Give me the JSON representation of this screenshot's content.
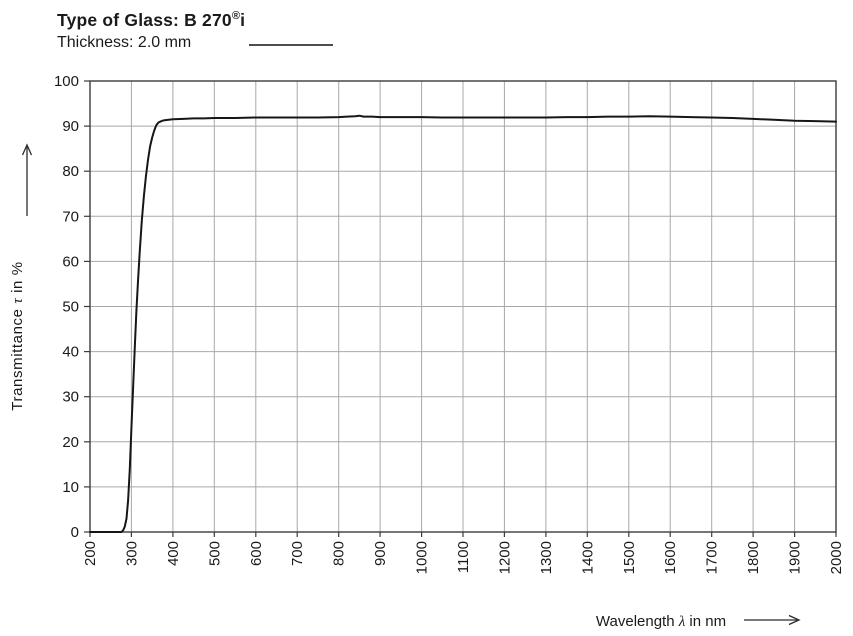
{
  "header": {
    "title": "Type of Glass: B 270®i",
    "title_prefix": "Type of Glass: B 270",
    "title_reg": "®",
    "title_suffix": "i",
    "subtitle": "Thickness: 2.0 mm"
  },
  "chart_data": {
    "type": "line",
    "title": "Type of Glass: B 270®i",
    "subtitle": "Thickness: 2.0 mm",
    "xlabel": "Wavelength λ in nm",
    "ylabel": "Transmittance τ in %",
    "xlabel_parts": {
      "pre": "Wavelength ",
      "sym": "λ",
      "post": " in nm"
    },
    "ylabel_parts": {
      "pre": "Transmittance ",
      "sym": "τ",
      "post": " in %"
    },
    "xlim": [
      200,
      2000
    ],
    "ylim": [
      0,
      100
    ],
    "xticks": [
      200,
      300,
      400,
      500,
      600,
      700,
      800,
      900,
      1000,
      1100,
      1200,
      1300,
      1400,
      1500,
      1600,
      1700,
      1800,
      1900,
      2000
    ],
    "yticks": [
      0,
      10,
      20,
      30,
      40,
      50,
      60,
      70,
      80,
      90,
      100
    ],
    "grid": true,
    "legend": {
      "position": "top-left",
      "entries": [
        {
          "label": "Thickness: 2.0 mm",
          "style": "solid-line"
        }
      ]
    },
    "series": [
      {
        "name": "2.0 mm",
        "points": [
          [
            200,
            0
          ],
          [
            240,
            0
          ],
          [
            260,
            0
          ],
          [
            270,
            0
          ],
          [
            276,
            0
          ],
          [
            280,
            0.4
          ],
          [
            284,
            1.2
          ],
          [
            288,
            3
          ],
          [
            292,
            7
          ],
          [
            296,
            14
          ],
          [
            300,
            23
          ],
          [
            304,
            32
          ],
          [
            308,
            41
          ],
          [
            312,
            49
          ],
          [
            316,
            56
          ],
          [
            320,
            62
          ],
          [
            325,
            69
          ],
          [
            330,
            74.5
          ],
          [
            335,
            79
          ],
          [
            340,
            82.5
          ],
          [
            345,
            85.5
          ],
          [
            350,
            87.5
          ],
          [
            355,
            89
          ],
          [
            360,
            90.2
          ],
          [
            365,
            90.8
          ],
          [
            370,
            91.0
          ],
          [
            375,
            91.2
          ],
          [
            380,
            91.3
          ],
          [
            390,
            91.4
          ],
          [
            400,
            91.5
          ],
          [
            425,
            91.6
          ],
          [
            450,
            91.7
          ],
          [
            475,
            91.7
          ],
          [
            500,
            91.8
          ],
          [
            550,
            91.8
          ],
          [
            600,
            91.9
          ],
          [
            650,
            91.9
          ],
          [
            700,
            91.9
          ],
          [
            750,
            91.9
          ],
          [
            800,
            92.0
          ],
          [
            820,
            92.1
          ],
          [
            840,
            92.2
          ],
          [
            850,
            92.3
          ],
          [
            860,
            92.1
          ],
          [
            880,
            92.1
          ],
          [
            900,
            92.0
          ],
          [
            950,
            92.0
          ],
          [
            1000,
            92.0
          ],
          [
            1050,
            91.9
          ],
          [
            1100,
            91.9
          ],
          [
            1150,
            91.9
          ],
          [
            1200,
            91.9
          ],
          [
            1250,
            91.9
          ],
          [
            1300,
            91.9
          ],
          [
            1350,
            92.0
          ],
          [
            1400,
            92.0
          ],
          [
            1450,
            92.1
          ],
          [
            1500,
            92.1
          ],
          [
            1550,
            92.2
          ],
          [
            1600,
            92.1
          ],
          [
            1650,
            92.0
          ],
          [
            1700,
            91.9
          ],
          [
            1750,
            91.8
          ],
          [
            1800,
            91.6
          ],
          [
            1850,
            91.4
          ],
          [
            1900,
            91.2
          ],
          [
            1950,
            91.1
          ],
          [
            2000,
            91.0
          ]
        ]
      }
    ],
    "colors": {
      "curve": "#161616",
      "grid": "#a8a8a8",
      "frame": "#3c3c3c",
      "text": "#1a1a1a"
    }
  }
}
